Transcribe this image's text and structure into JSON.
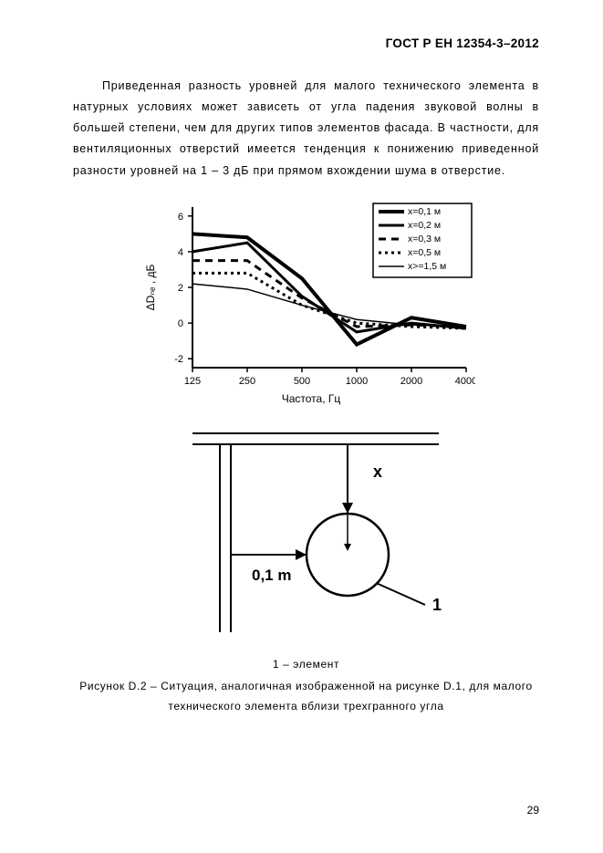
{
  "header": "ГОСТ Р ЕН 12354-3–2012",
  "paragraph": "Приведенная разность уровней для малого технического элемента в натурных условиях может зависеть от угла падения звуковой волны в большей степени, чем для других типов элементов фасада. В частности, для вентиляционных отверстий имеется тенденция к понижению приведенной разности уровней на 1 – 3 дБ при прямом вхождении шума в отверстие.",
  "chart": {
    "type": "line",
    "xaxis_label": "Частота, Гц",
    "yaxis_label": "ΔDₙₑ , дБ",
    "xticks": [
      125,
      250,
      500,
      1000,
      2000,
      4000
    ],
    "yticks": [
      -2,
      0,
      2,
      4,
      6
    ],
    "ylim": [
      -2.5,
      6.5
    ],
    "tick_fontsize": 11,
    "axis_color": "#000000",
    "background_color": "#ffffff",
    "legend": {
      "bg": "#ffffff",
      "border": "#000000",
      "items": [
        {
          "label": "x=0,1 м",
          "stroke_width": 4,
          "dash": ""
        },
        {
          "label": "x=0,2 м",
          "stroke_width": 3,
          "dash": ""
        },
        {
          "label": "x=0,3 м",
          "stroke_width": 3,
          "dash": "8 6"
        },
        {
          "label": "x=0,5 м",
          "stroke_width": 3,
          "dash": "3 4"
        },
        {
          "label": "x>=1,5 м",
          "stroke_width": 1.5,
          "dash": ""
        }
      ]
    },
    "series": [
      {
        "color": "#000000",
        "stroke_width": 4,
        "dash": "",
        "points": [
          [
            125,
            5.0
          ],
          [
            250,
            4.8
          ],
          [
            500,
            2.5
          ],
          [
            1000,
            -1.2
          ],
          [
            2000,
            0.3
          ],
          [
            4000,
            -0.2
          ]
        ]
      },
      {
        "color": "#000000",
        "stroke_width": 3,
        "dash": "",
        "points": [
          [
            125,
            4.0
          ],
          [
            250,
            4.5
          ],
          [
            500,
            1.5
          ],
          [
            1000,
            -0.5
          ],
          [
            2000,
            0.0
          ],
          [
            4000,
            -0.3
          ]
        ]
      },
      {
        "color": "#000000",
        "stroke_width": 3,
        "dash": "8 6",
        "points": [
          [
            125,
            3.5
          ],
          [
            250,
            3.5
          ],
          [
            500,
            1.4
          ],
          [
            1000,
            -0.2
          ],
          [
            2000,
            -0.1
          ],
          [
            4000,
            -0.2
          ]
        ]
      },
      {
        "color": "#000000",
        "stroke_width": 3,
        "dash": "3 4",
        "points": [
          [
            125,
            2.8
          ],
          [
            250,
            2.8
          ],
          [
            500,
            1.0
          ],
          [
            1000,
            0.0
          ],
          [
            2000,
            -0.2
          ],
          [
            4000,
            -0.3
          ]
        ]
      },
      {
        "color": "#000000",
        "stroke_width": 1.5,
        "dash": "",
        "points": [
          [
            125,
            2.2
          ],
          [
            250,
            1.9
          ],
          [
            500,
            1.0
          ],
          [
            1000,
            0.2
          ],
          [
            2000,
            -0.1
          ],
          [
            4000,
            -0.2
          ]
        ]
      }
    ]
  },
  "diagram": {
    "label_x": "x",
    "label_dist": "0,1 m",
    "label_elem": "1",
    "circle_radius": 45,
    "line_color": "#000000"
  },
  "caption_small": "1 – элемент",
  "caption": "Рисунок D.2 – Ситуация, аналогичная изображенной на рисунке D.1, для малого технического элемента вблизи трехгранного угла",
  "page_num": "29"
}
